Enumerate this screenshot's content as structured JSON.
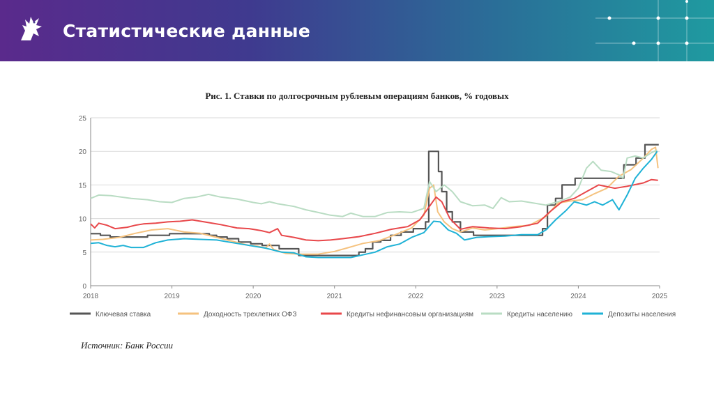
{
  "header": {
    "title": "Статистические данные",
    "logo_icon": "griffin-logo-icon"
  },
  "colors": {
    "header_gradient": [
      "#5a2a8c",
      "#3f3a8f",
      "#2a6f98",
      "#1f9aa0"
    ],
    "key_rate": "#555555",
    "ofz": "#f5c27e",
    "nonfin_loans": "#e8474a",
    "household_loans": "#b9dcc3",
    "household_deposits": "#1fb2d6"
  },
  "source": "Источник: Банк России",
  "chart_data": {
    "type": "line",
    "title": "Рис. 1. Ставки по долгосрочным рублевым операциям банков, % годовых",
    "xlabel": "",
    "ylabel": "",
    "xlim": [
      2018,
      2025
    ],
    "ylim": [
      0,
      25
    ],
    "x_ticks": [
      "2018",
      "2019",
      "2020",
      "2021",
      "2022",
      "2023",
      "2024",
      "2025"
    ],
    "y_ticks": [
      "0",
      "5",
      "10",
      "15",
      "20",
      "25"
    ],
    "grid": "horizontal",
    "legend_position": "bottom",
    "series": [
      {
        "name": "Ключевая ставка",
        "color": "#555555",
        "step": true,
        "points": [
          [
            2018,
            7.75
          ],
          [
            2018.12,
            7.5
          ],
          [
            2018.24,
            7.25
          ],
          [
            2018.7,
            7.5
          ],
          [
            2018.97,
            7.75
          ],
          [
            2019.46,
            7.5
          ],
          [
            2019.55,
            7.25
          ],
          [
            2019.68,
            7.0
          ],
          [
            2019.82,
            6.5
          ],
          [
            2019.97,
            6.25
          ],
          [
            2020.11,
            6.0
          ],
          [
            2020.32,
            5.5
          ],
          [
            2020.56,
            4.5
          ],
          [
            2021.23,
            4.5
          ],
          [
            2021.3,
            5.0
          ],
          [
            2021.38,
            5.5
          ],
          [
            2021.47,
            6.5
          ],
          [
            2021.57,
            6.75
          ],
          [
            2021.69,
            7.5
          ],
          [
            2021.82,
            8.0
          ],
          [
            2021.97,
            8.5
          ],
          [
            2022.12,
            9.5
          ],
          [
            2022.16,
            20.0
          ],
          [
            2022.28,
            17.0
          ],
          [
            2022.32,
            14.0
          ],
          [
            2022.38,
            11.0
          ],
          [
            2022.45,
            9.5
          ],
          [
            2022.55,
            8.0
          ],
          [
            2022.71,
            7.5
          ],
          [
            2023.56,
            8.5
          ],
          [
            2023.62,
            12.0
          ],
          [
            2023.72,
            13.0
          ],
          [
            2023.8,
            15.0
          ],
          [
            2023.96,
            16.0
          ],
          [
            2024.56,
            18.0
          ],
          [
            2024.71,
            19.0
          ],
          [
            2024.82,
            21.0
          ],
          [
            2024.99,
            21.0
          ]
        ]
      },
      {
        "name": "Доходность трехлетних ОФЗ",
        "color": "#f5c27e",
        "step": false,
        "points": [
          [
            2018,
            6.8
          ],
          [
            2018.15,
            6.9
          ],
          [
            2018.35,
            7.2
          ],
          [
            2018.55,
            7.8
          ],
          [
            2018.75,
            8.3
          ],
          [
            2018.95,
            8.5
          ],
          [
            2019.15,
            8.0
          ],
          [
            2019.35,
            7.8
          ],
          [
            2019.55,
            7.2
          ],
          [
            2019.75,
            6.6
          ],
          [
            2019.95,
            6.0
          ],
          [
            2020.05,
            5.9
          ],
          [
            2020.15,
            5.6
          ],
          [
            2020.2,
            6.2
          ],
          [
            2020.25,
            5.4
          ],
          [
            2020.4,
            4.8
          ],
          [
            2020.6,
            4.7
          ],
          [
            2020.8,
            4.7
          ],
          [
            2021.0,
            5.1
          ],
          [
            2021.15,
            5.6
          ],
          [
            2021.35,
            6.3
          ],
          [
            2021.55,
            6.7
          ],
          [
            2021.75,
            7.6
          ],
          [
            2021.95,
            8.6
          ],
          [
            2022.1,
            10.5
          ],
          [
            2022.17,
            14.5
          ],
          [
            2022.22,
            15.0
          ],
          [
            2022.27,
            11.0
          ],
          [
            2022.35,
            9.5
          ],
          [
            2022.45,
            8.5
          ],
          [
            2022.55,
            8.0
          ],
          [
            2022.7,
            8.6
          ],
          [
            2022.85,
            8.3
          ],
          [
            2023.0,
            8.5
          ],
          [
            2023.2,
            8.8
          ],
          [
            2023.4,
            9.0
          ],
          [
            2023.6,
            10.3
          ],
          [
            2023.75,
            12.3
          ],
          [
            2023.9,
            12.6
          ],
          [
            2024.05,
            12.8
          ],
          [
            2024.2,
            13.7
          ],
          [
            2024.35,
            14.5
          ],
          [
            2024.5,
            16.3
          ],
          [
            2024.65,
            17.3
          ],
          [
            2024.8,
            19.0
          ],
          [
            2024.9,
            20.3
          ],
          [
            2024.95,
            20.6
          ],
          [
            2024.98,
            17.5
          ]
        ]
      },
      {
        "name": "Кредиты нефинансовым организациям",
        "color": "#e8474a",
        "step": false,
        "points": [
          [
            2018,
            9.2
          ],
          [
            2018.05,
            8.6
          ],
          [
            2018.1,
            9.3
          ],
          [
            2018.2,
            9.0
          ],
          [
            2018.3,
            8.5
          ],
          [
            2018.45,
            8.7
          ],
          [
            2018.55,
            9.0
          ],
          [
            2018.65,
            9.2
          ],
          [
            2018.8,
            9.3
          ],
          [
            2018.95,
            9.5
          ],
          [
            2019.1,
            9.6
          ],
          [
            2019.25,
            9.8
          ],
          [
            2019.45,
            9.4
          ],
          [
            2019.6,
            9.1
          ],
          [
            2019.8,
            8.6
          ],
          [
            2019.95,
            8.5
          ],
          [
            2020.1,
            8.2
          ],
          [
            2020.2,
            7.9
          ],
          [
            2020.3,
            8.5
          ],
          [
            2020.35,
            7.5
          ],
          [
            2020.5,
            7.2
          ],
          [
            2020.65,
            6.8
          ],
          [
            2020.8,
            6.7
          ],
          [
            2020.95,
            6.8
          ],
          [
            2021.1,
            7.0
          ],
          [
            2021.3,
            7.3
          ],
          [
            2021.5,
            7.8
          ],
          [
            2021.7,
            8.4
          ],
          [
            2021.9,
            8.8
          ],
          [
            2022.05,
            9.8
          ],
          [
            2022.15,
            11.5
          ],
          [
            2022.25,
            13.2
          ],
          [
            2022.32,
            12.5
          ],
          [
            2022.42,
            10.0
          ],
          [
            2022.55,
            8.4
          ],
          [
            2022.7,
            8.8
          ],
          [
            2022.9,
            8.6
          ],
          [
            2023.1,
            8.5
          ],
          [
            2023.3,
            8.8
          ],
          [
            2023.5,
            9.3
          ],
          [
            2023.65,
            11.0
          ],
          [
            2023.8,
            12.5
          ],
          [
            2023.95,
            13.0
          ],
          [
            2024.1,
            14.0
          ],
          [
            2024.25,
            15.0
          ],
          [
            2024.45,
            14.5
          ],
          [
            2024.6,
            14.8
          ],
          [
            2024.8,
            15.3
          ],
          [
            2024.9,
            15.8
          ],
          [
            2024.98,
            15.7
          ]
        ]
      },
      {
        "name": "Кредиты населению",
        "color": "#b9dcc3",
        "step": false,
        "points": [
          [
            2018,
            13.0
          ],
          [
            2018.1,
            13.5
          ],
          [
            2018.25,
            13.4
          ],
          [
            2018.5,
            13.0
          ],
          [
            2018.7,
            12.8
          ],
          [
            2018.85,
            12.5
          ],
          [
            2019.0,
            12.4
          ],
          [
            2019.15,
            13.0
          ],
          [
            2019.3,
            13.2
          ],
          [
            2019.45,
            13.6
          ],
          [
            2019.6,
            13.2
          ],
          [
            2019.8,
            12.9
          ],
          [
            2020.0,
            12.4
          ],
          [
            2020.1,
            12.2
          ],
          [
            2020.2,
            12.5
          ],
          [
            2020.3,
            12.2
          ],
          [
            2020.5,
            11.8
          ],
          [
            2020.65,
            11.3
          ],
          [
            2020.8,
            10.9
          ],
          [
            2020.95,
            10.5
          ],
          [
            2021.1,
            10.3
          ],
          [
            2021.2,
            10.8
          ],
          [
            2021.35,
            10.3
          ],
          [
            2021.5,
            10.3
          ],
          [
            2021.65,
            10.9
          ],
          [
            2021.8,
            11.0
          ],
          [
            2021.95,
            10.9
          ],
          [
            2022.1,
            11.5
          ],
          [
            2022.17,
            15.5
          ],
          [
            2022.25,
            14.0
          ],
          [
            2022.35,
            15.0
          ],
          [
            2022.45,
            14.0
          ],
          [
            2022.55,
            12.5
          ],
          [
            2022.7,
            11.9
          ],
          [
            2022.85,
            12.0
          ],
          [
            2022.95,
            11.5
          ],
          [
            2023.05,
            13.1
          ],
          [
            2023.15,
            12.5
          ],
          [
            2023.3,
            12.6
          ],
          [
            2023.45,
            12.3
          ],
          [
            2023.6,
            12.0
          ],
          [
            2023.75,
            12.5
          ],
          [
            2023.9,
            13.2
          ],
          [
            2024.0,
            14.5
          ],
          [
            2024.1,
            17.5
          ],
          [
            2024.18,
            18.5
          ],
          [
            2024.28,
            17.2
          ],
          [
            2024.4,
            17.0
          ],
          [
            2024.5,
            16.5
          ],
          [
            2024.55,
            16.0
          ],
          [
            2024.6,
            19.0
          ],
          [
            2024.7,
            19.3
          ],
          [
            2024.8,
            19.0
          ],
          [
            2024.9,
            19.8
          ],
          [
            2024.97,
            20.2
          ]
        ]
      },
      {
        "name": "Депозиты населения",
        "color": "#1fb2d6",
        "step": false,
        "points": [
          [
            2018,
            6.3
          ],
          [
            2018.1,
            6.4
          ],
          [
            2018.2,
            6.0
          ],
          [
            2018.3,
            5.8
          ],
          [
            2018.4,
            6.0
          ],
          [
            2018.5,
            5.7
          ],
          [
            2018.65,
            5.7
          ],
          [
            2018.8,
            6.4
          ],
          [
            2018.95,
            6.8
          ],
          [
            2019.15,
            7.0
          ],
          [
            2019.35,
            6.9
          ],
          [
            2019.55,
            6.8
          ],
          [
            2019.75,
            6.4
          ],
          [
            2019.95,
            6.0
          ],
          [
            2020.15,
            5.6
          ],
          [
            2020.35,
            5.0
          ],
          [
            2020.5,
            4.9
          ],
          [
            2020.65,
            4.3
          ],
          [
            2020.8,
            4.2
          ],
          [
            2021.0,
            4.2
          ],
          [
            2021.2,
            4.2
          ],
          [
            2021.35,
            4.6
          ],
          [
            2021.5,
            5.0
          ],
          [
            2021.65,
            5.8
          ],
          [
            2021.8,
            6.2
          ],
          [
            2021.95,
            7.2
          ],
          [
            2022.1,
            7.9
          ],
          [
            2022.22,
            9.6
          ],
          [
            2022.3,
            9.5
          ],
          [
            2022.4,
            8.3
          ],
          [
            2022.5,
            7.8
          ],
          [
            2022.6,
            6.8
          ],
          [
            2022.75,
            7.2
          ],
          [
            2022.9,
            7.3
          ],
          [
            2023.1,
            7.4
          ],
          [
            2023.3,
            7.6
          ],
          [
            2023.5,
            7.6
          ],
          [
            2023.6,
            8.3
          ],
          [
            2023.72,
            9.8
          ],
          [
            2023.85,
            11.2
          ],
          [
            2023.95,
            12.5
          ],
          [
            2024.1,
            12.0
          ],
          [
            2024.2,
            12.5
          ],
          [
            2024.3,
            12.0
          ],
          [
            2024.42,
            12.8
          ],
          [
            2024.5,
            11.3
          ],
          [
            2024.6,
            13.5
          ],
          [
            2024.7,
            16.0
          ],
          [
            2024.8,
            17.5
          ],
          [
            2024.9,
            18.8
          ],
          [
            2024.97,
            20.0
          ]
        ]
      }
    ]
  }
}
